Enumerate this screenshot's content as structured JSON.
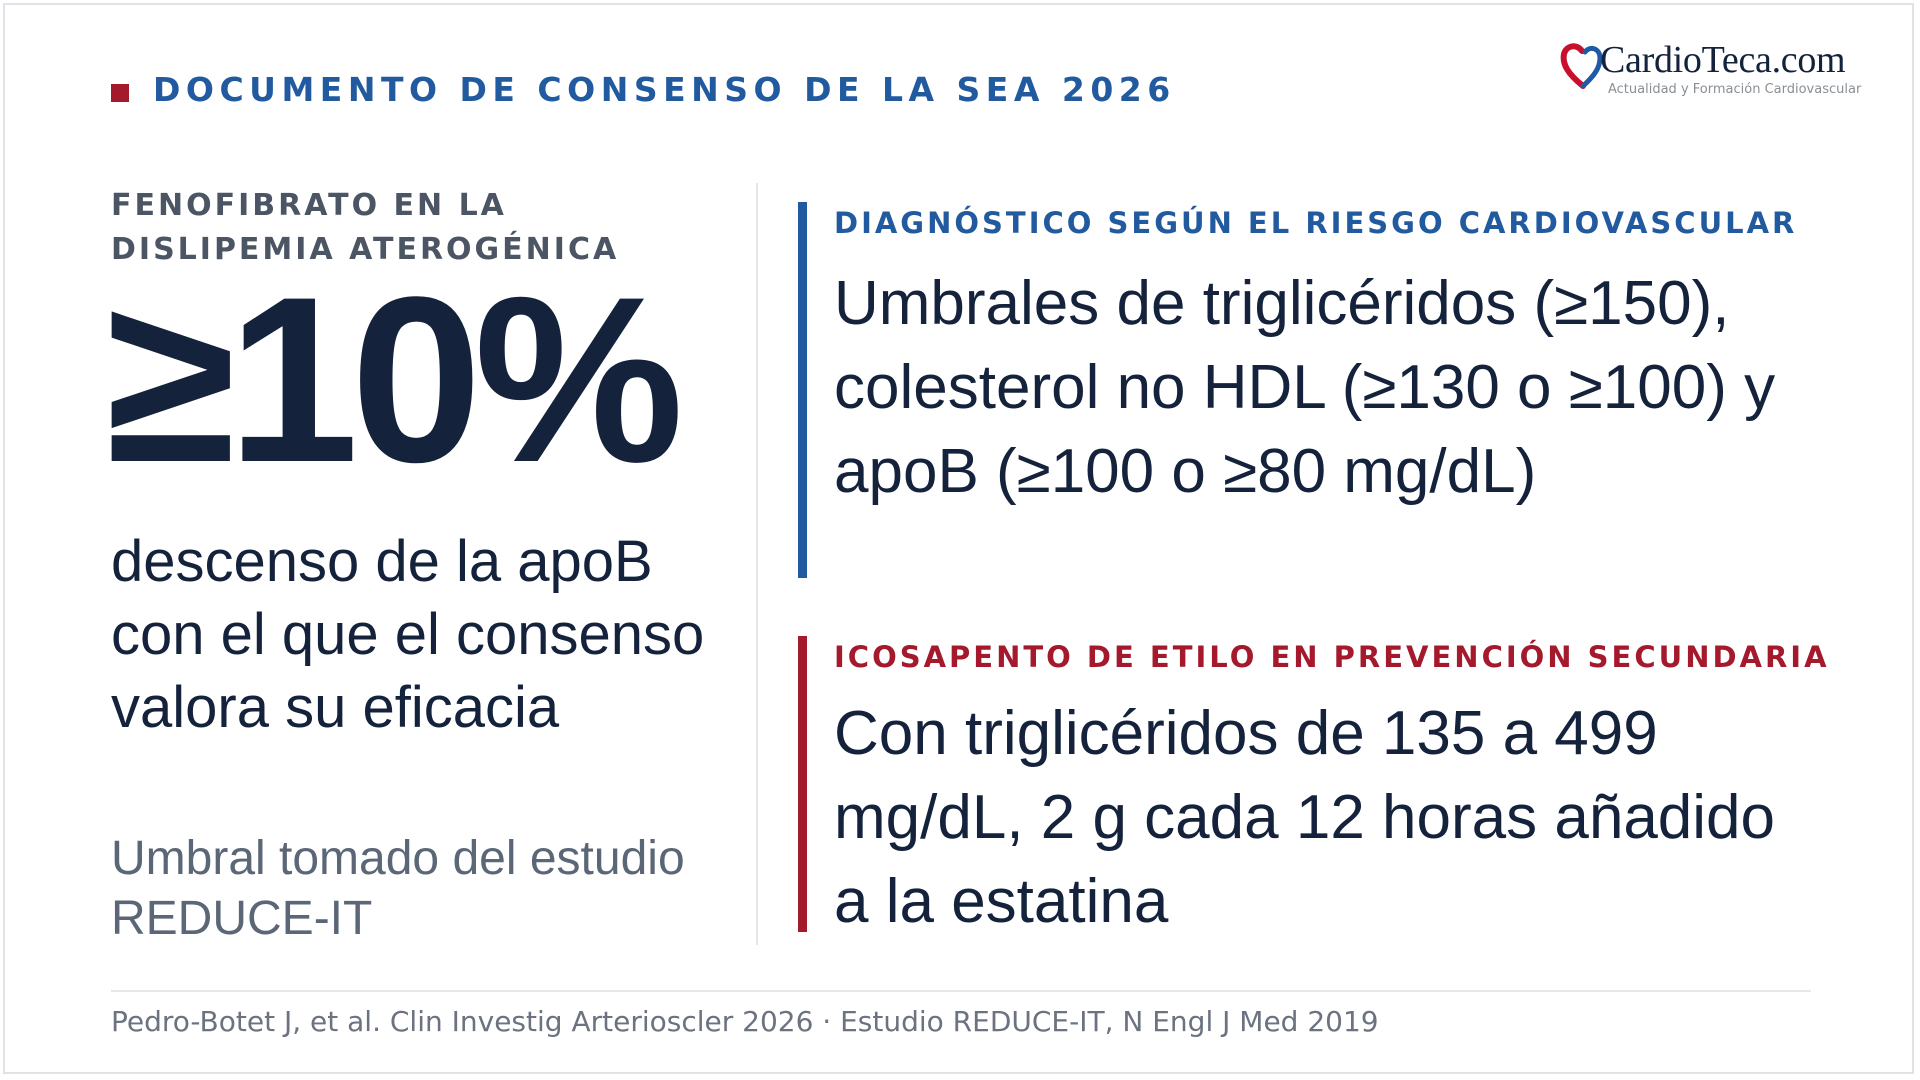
{
  "header": {
    "title": "DOCUMENTO DE CONSENSO DE LA SEA 2026"
  },
  "logo": {
    "name": "CardioTeca.com",
    "tagline": "Actualidad y Formación Cardiovascular",
    "icon": "heart-logo-icon",
    "colors": {
      "red": "#c8102e",
      "blue": "#1f5aa6"
    }
  },
  "left": {
    "label": "FENOFIBRATO EN LA DISLIPEMIA ATEROGÉNICA",
    "value": "≥10%",
    "description": "descenso de la apoB con el que el consenso valora su eficacia",
    "note": "Umbral tomado del estudio REDUCE-IT"
  },
  "right": {
    "blocks": [
      {
        "label": "DIAGNÓSTICO SEGÚN EL RIESGO CARDIOVASCULAR",
        "text": "Umbrales de triglicéridos (≥150), colesterol no HDL (≥130 o ≥100) y apoB (≥100 o ≥80 mg/dL)",
        "accent": "#225aa0"
      },
      {
        "label": "ICOSAPENTO DE ETILO EN PREVENCIÓN SECUNDARIA",
        "text": "Con triglicéridos de 135 a 499 mg/dL, 2 g cada 12 horas añadido a la estatina",
        "accent": "#a5192d"
      }
    ]
  },
  "footer": {
    "citation": "Pedro-Botet J, et al. Clin Investig Arterioscler 2026 · Estudio REDUCE-IT, N Engl J Med 2019"
  },
  "colors": {
    "navy": "#14223c",
    "blue_accent": "#225aa0",
    "red_accent": "#a5192d",
    "gray_text": "#5b6677"
  }
}
